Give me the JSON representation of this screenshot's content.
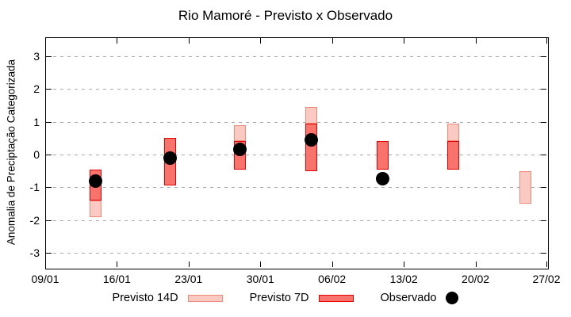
{
  "chart_data": {
    "type": "bar",
    "subtype": "range-bars-with-scatter",
    "title": "Rio Mamoré - Previsto x Observado",
    "ylabel": "Anomalia de Preciptação Categorizada",
    "xlabel": "",
    "grid": "horizontal-dashed",
    "x_axis": {
      "tick_labels": [
        "09/01",
        "16/01",
        "23/01",
        "30/01",
        "06/02",
        "13/02",
        "20/02",
        "27/02"
      ],
      "tick_days": [
        0,
        7,
        14,
        21,
        28,
        35,
        42,
        49
      ],
      "domain_days": [
        0,
        49
      ]
    },
    "y_axis": {
      "ticks": [
        -3,
        -2,
        -1,
        0,
        1,
        2,
        3
      ],
      "lim": [
        -3.46,
        3.58
      ]
    },
    "legend": [
      {
        "label": "Previsto 14D",
        "swatch": "box",
        "fill": "#f9c9c2",
        "border": "#ef8a7a"
      },
      {
        "label": "Previsto 7D",
        "swatch": "box",
        "fill": "#f8736c",
        "border": "#e20000"
      },
      {
        "label": "Observado",
        "swatch": "dot",
        "fill": "#000000",
        "border": "#000000"
      }
    ],
    "series": {
      "previsto_14d": {
        "name": "Previsto 14D",
        "fill": "#f9c9c2",
        "border": "#ef8a7a",
        "bars": [
          {
            "date": "14/01",
            "day": 4.95,
            "low": -1.9,
            "high": -1.4
          },
          {
            "date": "28/01",
            "day": 19.0,
            "low": 0.4,
            "high": 0.9
          },
          {
            "date": "04/02",
            "day": 26.0,
            "low": 0.95,
            "high": 1.45
          },
          {
            "date": "18/02",
            "day": 39.8,
            "low": 0.4,
            "high": 0.95
          },
          {
            "date": "25/02",
            "day": 46.9,
            "low": -1.5,
            "high": -0.5
          }
        ]
      },
      "previsto_7d": {
        "name": "Previsto 7D",
        "fill": "#f8736c",
        "border": "#e20000",
        "bars": [
          {
            "date": "14/01",
            "day": 4.95,
            "low": -1.4,
            "high": -0.45
          },
          {
            "date": "21/01",
            "day": 12.2,
            "low": -0.95,
            "high": 0.5
          },
          {
            "date": "28/01",
            "day": 19.0,
            "low": -0.45,
            "high": 0.4
          },
          {
            "date": "04/02",
            "day": 26.0,
            "low": -0.5,
            "high": 0.95
          },
          {
            "date": "11/02",
            "day": 32.9,
            "low": -0.45,
            "high": 0.4
          },
          {
            "date": "18/02",
            "day": 39.8,
            "low": -0.45,
            "high": 0.4
          }
        ]
      },
      "observado": {
        "name": "Observado",
        "color": "#000000",
        "points": [
          {
            "date": "14/01",
            "day": 4.95,
            "value": -0.8
          },
          {
            "date": "21/01",
            "day": 12.2,
            "value": -0.1
          },
          {
            "date": "28/01",
            "day": 19.0,
            "value": 0.15
          },
          {
            "date": "04/02",
            "day": 26.0,
            "value": 0.45
          },
          {
            "date": "11/02",
            "day": 32.9,
            "value": -0.75
          }
        ]
      }
    }
  }
}
